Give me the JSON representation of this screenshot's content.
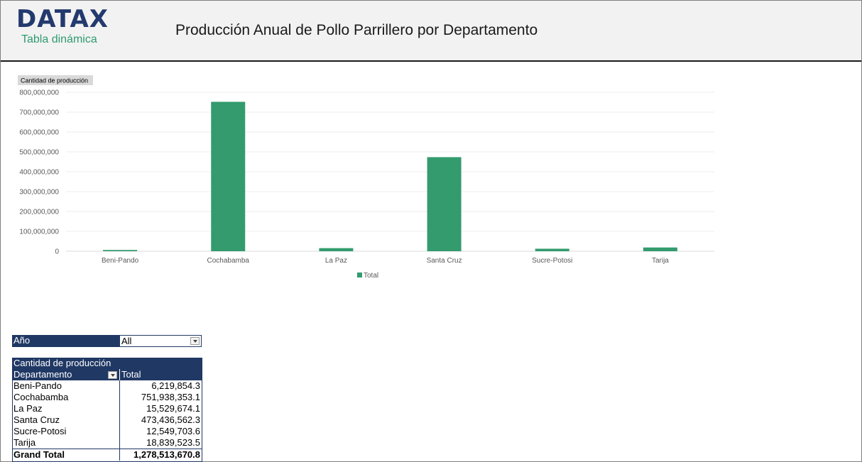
{
  "brand": {
    "logo": "DATAX",
    "subtitle": "Tabla dinámica"
  },
  "title": "Producción Anual de Pollo Parrillero por Departamento",
  "chart_data": {
    "type": "bar",
    "title": "",
    "field_button": "Cantidad de producción",
    "categories": [
      "Beni-Pando",
      "Cochabamba",
      "La Paz",
      "Santa Cruz",
      "Sucre-Potosi",
      "Tarija"
    ],
    "series": [
      {
        "name": "Total",
        "values": [
          6219854.3,
          751938353.1,
          15529674.1,
          473436562.3,
          12549703.6,
          18839523.5
        ],
        "color": "#339b6e"
      }
    ],
    "ylim": [
      0,
      800000000
    ],
    "yticks": [
      "0",
      "100,000,000",
      "200,000,000",
      "300,000,000",
      "400,000,000",
      "500,000,000",
      "600,000,000",
      "700,000,000",
      "800,000,000"
    ],
    "grid": true,
    "legend": "bottom"
  },
  "filter": {
    "label": "Año",
    "value": "All"
  },
  "pivot": {
    "measure": "Cantidad de producción",
    "row_header": "Departamento",
    "col_header": "Total",
    "rows": [
      {
        "name": "Beni-Pando",
        "value": "6,219,854.3"
      },
      {
        "name": "Cochabamba",
        "value": "751,938,353.1"
      },
      {
        "name": "La Paz",
        "value": "15,529,674.1"
      },
      {
        "name": "Santa Cruz",
        "value": "473,436,562.3"
      },
      {
        "name": "Sucre-Potosi",
        "value": "12,549,703.6"
      },
      {
        "name": "Tarija",
        "value": "18,839,523.5"
      }
    ],
    "grand_total_label": "Grand Total",
    "grand_total_value": "1,278,513,670.8"
  }
}
